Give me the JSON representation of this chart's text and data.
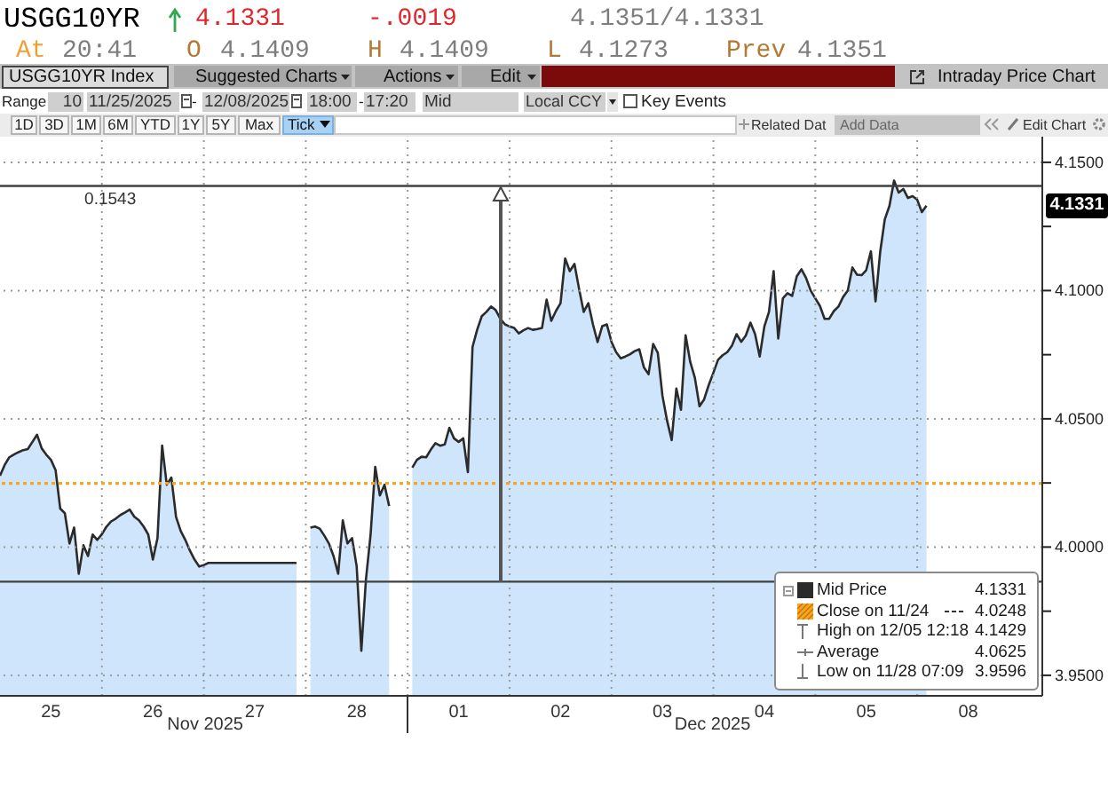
{
  "chart_data": {
    "type": "area",
    "title": "USGG10YR",
    "categories": [
      null,
      null,
      null,
      null,
      null,
      null,
      null,
      null,
      null,
      null,
      null,
      "25",
      null,
      null,
      null,
      null,
      null,
      null,
      null,
      null,
      null,
      null,
      null,
      null,
      null,
      null,
      null,
      null,
      null,
      null,
      null,
      null,
      null,
      "26",
      null,
      null,
      null,
      null,
      null,
      null,
      null,
      null,
      null,
      null,
      null,
      null,
      null,
      null,
      null,
      null,
      null,
      null,
      null,
      null,
      null,
      "27",
      null,
      null,
      null,
      null,
      null,
      null,
      null,
      null,
      null,
      null,
      null,
      null,
      null,
      null,
      null,
      null,
      null,
      null,
      null,
      null,
      null,
      "28",
      null,
      null,
      null,
      null,
      null,
      null,
      null,
      null,
      null,
      null,
      null,
      null,
      null,
      null,
      null,
      null,
      null,
      null,
      null,
      null,
      null,
      "01",
      null,
      null,
      null,
      null,
      null,
      null,
      null,
      null,
      null,
      null,
      null,
      null,
      null,
      null,
      null,
      null,
      null,
      null,
      null,
      null,
      null,
      "02",
      null,
      null,
      null,
      null,
      null,
      null,
      null,
      null,
      null,
      null,
      null,
      null,
      null,
      null,
      null,
      null,
      null,
      null,
      null,
      null,
      null,
      "03",
      null,
      null,
      null,
      null,
      null,
      null,
      null,
      null,
      null,
      null,
      null,
      null,
      null,
      null,
      null,
      null,
      null,
      null,
      null,
      null,
      null,
      "04",
      null,
      null,
      null,
      null,
      null,
      null,
      null,
      null,
      null,
      null,
      null,
      null,
      null,
      null,
      null,
      null,
      null,
      null,
      null,
      null,
      null,
      "05",
      null,
      null,
      null,
      null,
      null,
      null,
      null,
      null,
      null,
      null,
      null,
      null,
      null,
      null,
      null,
      null,
      null,
      null,
      null,
      null,
      null,
      "08",
      null,
      null,
      null,
      null,
      null,
      null,
      null,
      null,
      null,
      null,
      null,
      null,
      null,
      null,
      null,
      null
    ],
    "series": [
      {
        "name": "Mid Price",
        "color": "#2b2b2b",
        "values": [
          4.0278,
          4.032,
          4.035,
          4.0361,
          4.037,
          4.0378,
          4.0382,
          4.041,
          4.0438,
          4.0385,
          4.036,
          4.034,
          4.03,
          4.015,
          4.0132,
          4.0014,
          4.0076,
          3.9896,
          4.0007,
          3.9965,
          4.0049,
          4.0028,
          4.005,
          4.008,
          4.01,
          4.0111,
          4.0125,
          4.0135,
          4.0146,
          4.0118,
          4.0104,
          4.008,
          4.0049,
          3.9951,
          4.0035,
          4.0396,
          4.0243,
          4.0271,
          4.0118,
          4.0063,
          4.0028,
          3.9986,
          3.9951,
          3.9924,
          3.993,
          3.9938,
          3.9938,
          3.9938,
          3.9938,
          3.9938,
          3.9938,
          3.9938,
          3.9938,
          3.9938,
          3.9938,
          3.9938,
          3.9938,
          3.9938,
          3.9938,
          3.9938,
          3.9938,
          3.9938,
          3.9938,
          3.9938,
          3.9938,
          null,
          null,
          4.0076,
          4.008,
          4.0072,
          4.0045,
          4.0014,
          3.9965,
          3.9896,
          4.0104,
          4.0014,
          4.0035,
          3.9924,
          3.9596,
          3.9875,
          4.0049,
          4.0313,
          4.0201,
          4.0243,
          4.016,
          null,
          null,
          null,
          null,
          4.031,
          4.034,
          4.0352,
          4.035,
          4.038,
          4.0405,
          4.0395,
          4.04,
          4.0465,
          4.0424,
          4.041,
          4.0424,
          4.0292,
          4.078,
          4.0847,
          4.09,
          4.0917,
          4.0938,
          4.0924,
          4.089,
          4.0868,
          4.086,
          4.0854,
          4.0833,
          4.0845,
          4.0854,
          4.0847,
          4.085,
          4.0854,
          4.0965,
          4.0882,
          4.092,
          4.0951,
          4.1125,
          4.1076,
          4.1104,
          4.1007,
          4.0917,
          4.0951,
          4.0868,
          4.0799,
          4.0861,
          4.0868,
          4.08,
          4.076,
          4.0736,
          4.0743,
          4.0752,
          4.0764,
          4.0771,
          4.07,
          4.0674,
          4.0792,
          4.0757,
          4.059,
          4.0493,
          4.0417,
          4.0618,
          4.0535,
          4.0826,
          4.0722,
          4.066,
          4.0549,
          4.0576,
          4.0632,
          4.068,
          4.073,
          4.0748,
          4.076,
          4.0785,
          4.083,
          4.08,
          4.0825,
          4.0875,
          4.083,
          4.0743,
          4.086,
          4.0917,
          4.1076,
          4.0813,
          4.097,
          4.099,
          4.0979,
          4.1056,
          4.1083,
          4.1049,
          4.1,
          4.097,
          4.094,
          4.089,
          4.089,
          4.092,
          4.0938,
          4.0975,
          4.1,
          4.109,
          4.1062,
          4.106,
          4.108,
          4.1153,
          4.0958,
          4.115,
          4.1278,
          4.133,
          4.1429,
          4.1382,
          4.1396,
          4.1361,
          4.1368,
          4.1354,
          4.1306,
          4.1331,
          null,
          null,
          null,
          null,
          null,
          null,
          null,
          null,
          null,
          null,
          null,
          null,
          null,
          null,
          null,
          null,
          null,
          null,
          null,
          null,
          null,
          null,
          null,
          null,
          null
        ]
      }
    ],
    "ylim": [
      3.942,
      4.16
    ],
    "yticks": [
      {
        "value": 4.15,
        "label": "4.1500"
      },
      {
        "value": 4.125,
        "label": null
      },
      {
        "value": 4.1,
        "label": "4.1000"
      },
      {
        "value": 4.075,
        "label": null
      },
      {
        "value": 4.05,
        "label": "4.0500"
      },
      {
        "value": 4.025,
        "label": null
      },
      {
        "value": 4.0,
        "label": "4.0000"
      },
      {
        "value": 3.975,
        "label": null
      },
      {
        "value": 3.95,
        "label": "3.9500"
      }
    ],
    "ref_lines": [
      {
        "axis": "y",
        "value": 4.0248,
        "label": "Close on 11/24",
        "color": "#f5a623",
        "line_style": "dotted"
      },
      {
        "axis": "y",
        "value": 4.1408,
        "color": "#404040",
        "line_style": "solid"
      },
      {
        "axis": "y",
        "value": 3.9865,
        "color": "#404040",
        "line_style": "solid"
      }
    ],
    "grid": true,
    "legend": "bottom right",
    "annotations": [
      "4.1331",
      "-.0019",
      "4.1351/4.1331",
      "At",
      "20:41",
      "O",
      "4.1409",
      "H",
      "4.1409",
      "L",
      "4.1273",
      "Prev",
      "4.1351",
      "USGG10YR Index",
      "Suggested Charts",
      "Actions",
      "Edit",
      "Intraday Price Chart",
      "Range",
      "10",
      "11/25/2025",
      "-",
      "12/08/2025",
      "18:00",
      "-",
      "17:20",
      "Mid",
      "Local CCY",
      "Key Events",
      "1D",
      "3D",
      "1M",
      "6M",
      "YTD",
      "1Y",
      "5Y",
      "Max",
      "Tick",
      "Related Dat",
      "Add Data",
      "Edit Chart",
      "Nov 2025",
      "Dec 2025",
      "0.1543",
      "4.1331",
      "4.0248",
      "High on 12/05 12:18",
      "4.1429",
      "Average",
      "4.0625",
      "Low on 11/28 07:09",
      "3.9596"
    ]
  }
}
